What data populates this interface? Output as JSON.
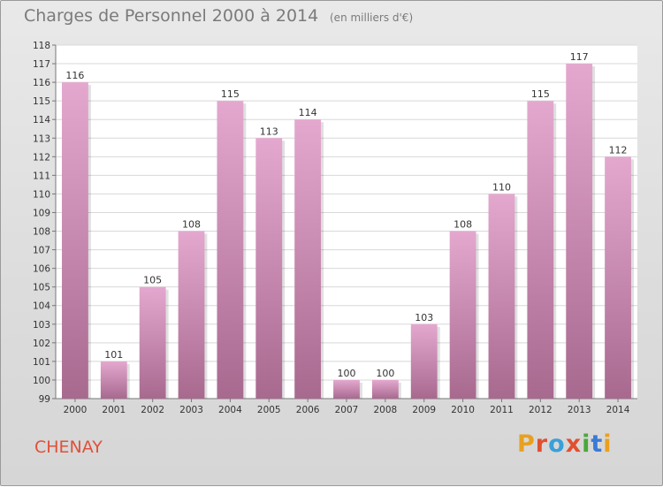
{
  "header": {
    "title": "Charges de Personnel 2000 à 2014",
    "subtitle": "(en milliers d'€)"
  },
  "footer": {
    "commune": "CHENAY",
    "brand": "Proxiti"
  },
  "colors": {
    "bar_light": "#e4a8cf",
    "bar_dark": "#a8698f",
    "commune_text": "#e0503a",
    "brand_letters": [
      "#e8a020",
      "#e05030",
      "#3aa0d8",
      "#e05030",
      "#4aa83a",
      "#3a7ad8",
      "#e8a020"
    ]
  },
  "chart_data": {
    "type": "bar",
    "categories": [
      "2000",
      "2001",
      "2002",
      "2003",
      "2004",
      "2005",
      "2006",
      "2007",
      "2008",
      "2009",
      "2010",
      "2011",
      "2012",
      "2013",
      "2014"
    ],
    "values": [
      116,
      101,
      105,
      108,
      115,
      113,
      114,
      100,
      100,
      103,
      108,
      110,
      115,
      117,
      112
    ],
    "ylim": [
      99,
      118
    ],
    "yticks": [
      99,
      100,
      101,
      102,
      103,
      104,
      105,
      106,
      107,
      108,
      109,
      110,
      111,
      112,
      113,
      114,
      115,
      116,
      117,
      118
    ],
    "grid": "horizontal",
    "title": "Charges de Personnel 2000 à 2014",
    "subtitle": "(en milliers d'€)"
  }
}
